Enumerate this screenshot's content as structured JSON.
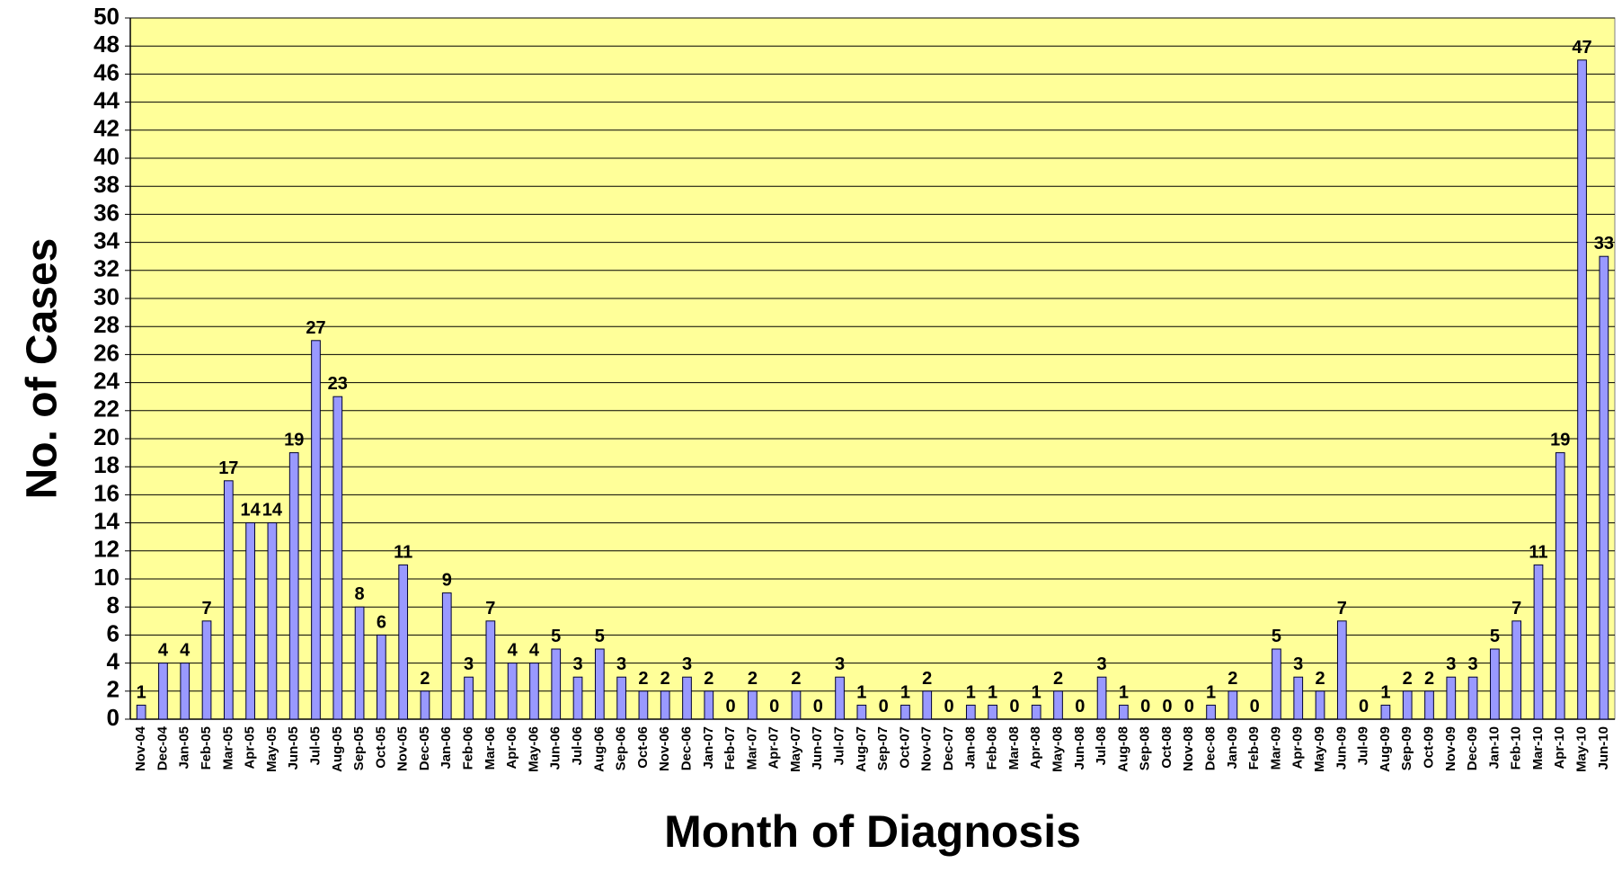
{
  "chart_data": {
    "type": "bar",
    "ylabel": "No. of Cases",
    "xlabel": "Month of Diagnosis",
    "categories": [
      "Nov-04",
      "Dec-04",
      "Jan-05",
      "Feb-05",
      "Mar-05",
      "Apr-05",
      "May-05",
      "Jun-05",
      "Jul-05",
      "Aug-05",
      "Sep-05",
      "Oct-05",
      "Nov-05",
      "Dec-05",
      "Jan-06",
      "Feb-06",
      "Mar-06",
      "Apr-06",
      "May-06",
      "Jun-06",
      "Jul-06",
      "Aug-06",
      "Sep-06",
      "Oct-06",
      "Nov-06",
      "Dec-06",
      "Jan-07",
      "Feb-07",
      "Mar-07",
      "Apr-07",
      "May-07",
      "Jun-07",
      "Jul-07",
      "Aug-07",
      "Sep-07",
      "Oct-07",
      "Nov-07",
      "Dec-07",
      "Jan-08",
      "Feb-08",
      "Mar-08",
      "Apr-08",
      "May-08",
      "Jun-08",
      "Jul-08",
      "Aug-08",
      "Sep-08",
      "Oct-08",
      "Nov-08",
      "Dec-08",
      "Jan-09",
      "Feb-09",
      "Mar-09",
      "Apr-09",
      "May-09",
      "Jun-09",
      "Jul-09",
      "Aug-09",
      "Sep-09",
      "Oct-09",
      "Nov-09",
      "Dec-09",
      "Jan-10",
      "Feb-10",
      "Mar-10",
      "Apr-10",
      "May-10",
      "Jun-10"
    ],
    "values": [
      1,
      4,
      4,
      7,
      17,
      14,
      14,
      19,
      27,
      23,
      8,
      6,
      11,
      2,
      9,
      3,
      7,
      4,
      4,
      5,
      3,
      5,
      3,
      2,
      2,
      3,
      2,
      0,
      2,
      0,
      2,
      0,
      3,
      1,
      0,
      1,
      2,
      0,
      1,
      1,
      0,
      1,
      2,
      0,
      3,
      1,
      0,
      0,
      0,
      1,
      2,
      0,
      5,
      3,
      2,
      7,
      0,
      1,
      2,
      2,
      3,
      3,
      5,
      7,
      11,
      19,
      47,
      33
    ],
    "color": "#9999ff",
    "background": "#ffff99",
    "ylim": [
      0,
      50
    ],
    "yticks": [
      0,
      2,
      4,
      6,
      8,
      10,
      12,
      14,
      16,
      18,
      20,
      22,
      24,
      26,
      28,
      30,
      32,
      34,
      36,
      38,
      40,
      42,
      44,
      46,
      48,
      50
    ],
    "grid": true
  }
}
